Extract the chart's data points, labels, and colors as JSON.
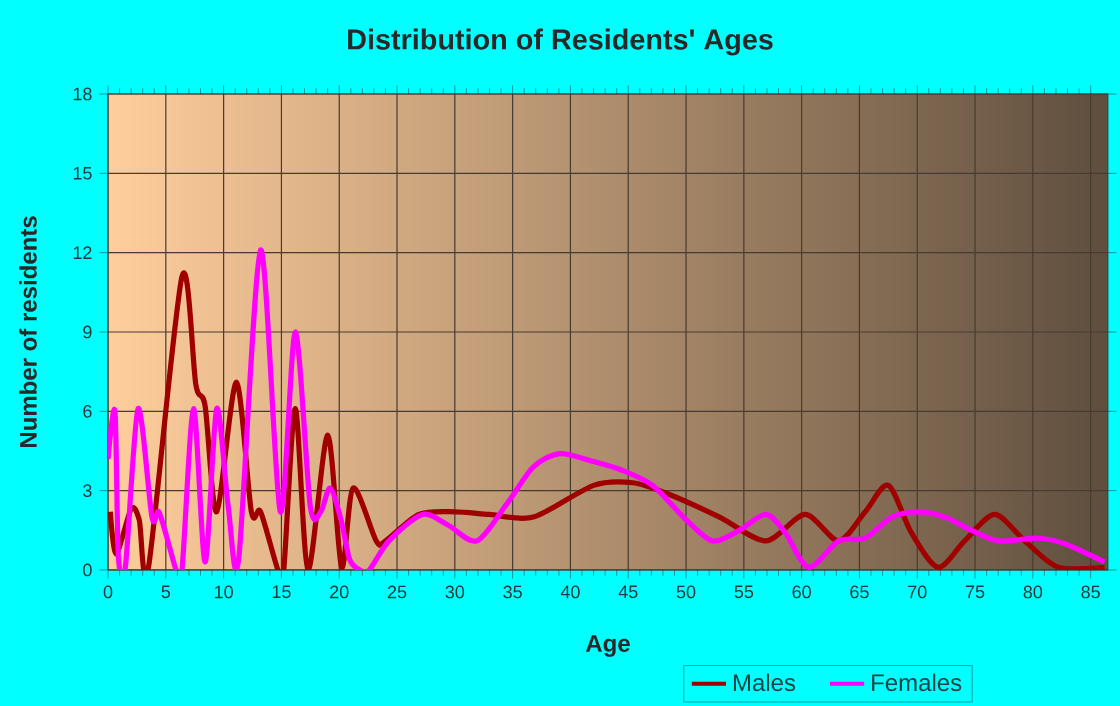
{
  "chart_data": {
    "type": "line",
    "title": "Distribution of Residents' Ages",
    "xlabel": "Age",
    "ylabel": "Number of residents",
    "xlim": [
      0,
      86.5
    ],
    "ylim": [
      0,
      18
    ],
    "xticks": [
      0,
      5,
      10,
      15,
      20,
      25,
      30,
      35,
      40,
      45,
      50,
      55,
      60,
      65,
      70,
      75,
      80,
      85
    ],
    "yticks": [
      0,
      3,
      6,
      9,
      12,
      15,
      18
    ],
    "grid": true,
    "legend": "bottom",
    "series": [
      {
        "name": "Males",
        "color": "#a00000",
        "x": [
          0.2,
          0.7,
          2,
          2.7,
          3.5,
          6.4,
          7.6,
          8.4,
          9.4,
          11.1,
          12.4,
          13.2,
          14.7,
          15.2,
          16.2,
          17.3,
          19,
          20.2,
          21.2,
          23.2,
          24,
          26.9,
          30,
          33,
          36.8,
          42,
          45.4,
          48.3,
          52.9,
          56.9,
          60.3,
          63.2,
          65.5,
          67.5,
          69.5,
          71.8,
          74.1,
          76.7,
          79.3,
          82.2,
          86.2
        ],
        "values": [
          2.2,
          0.6,
          2.3,
          1.9,
          0.1,
          11.1,
          7,
          6.2,
          2.2,
          7.1,
          2.2,
          2.2,
          0,
          0,
          6.1,
          0,
          5.1,
          0.1,
          3.1,
          1.1,
          1.1,
          2.1,
          2.2,
          2.1,
          2.0,
          3.2,
          3.3,
          2.9,
          2.0,
          1.1,
          2.1,
          1.1,
          2.2,
          3.2,
          1.4,
          0.1,
          1.1,
          2.1,
          1.1,
          0.1,
          0.1
        ]
      },
      {
        "name": "Females",
        "color": "#ff00ff",
        "x": [
          0,
          0.6,
          0.9,
          1.5,
          2.6,
          3.8,
          4.4,
          5.3,
          5.9,
          6.4,
          7.4,
          8.4,
          9.4,
          10.4,
          11.3,
          13.2,
          14.9,
          16.2,
          17.5,
          18.4,
          19.2,
          20.1,
          20.9,
          21.8,
          22.6,
          24.3,
          27.2,
          29.4,
          31.9,
          34.5,
          36.8,
          39.1,
          42,
          44.3,
          47.1,
          50,
          52.3,
          54.6,
          56.9,
          58.6,
          60.6,
          63.2,
          65.5,
          67.8,
          70.1,
          72.4,
          74.7,
          77,
          80.4,
          82.7,
          86.2
        ],
        "values": [
          4.2,
          6,
          0.5,
          0.1,
          6.1,
          2,
          2.2,
          0.9,
          0,
          0,
          6.1,
          0.3,
          6.1,
          2.4,
          0.4,
          12.1,
          2.2,
          9.0,
          2.4,
          2.2,
          3.1,
          2.0,
          0.4,
          0,
          0,
          1.1,
          2.1,
          1.7,
          1.1,
          2.5,
          3.9,
          4.4,
          4.1,
          3.8,
          3.2,
          1.9,
          1.1,
          1.5,
          2.1,
          1.4,
          0.1,
          1.1,
          1.2,
          2.0,
          2.2,
          2.0,
          1.5,
          1.1,
          1.2,
          1.0,
          0.3
        ]
      }
    ]
  }
}
